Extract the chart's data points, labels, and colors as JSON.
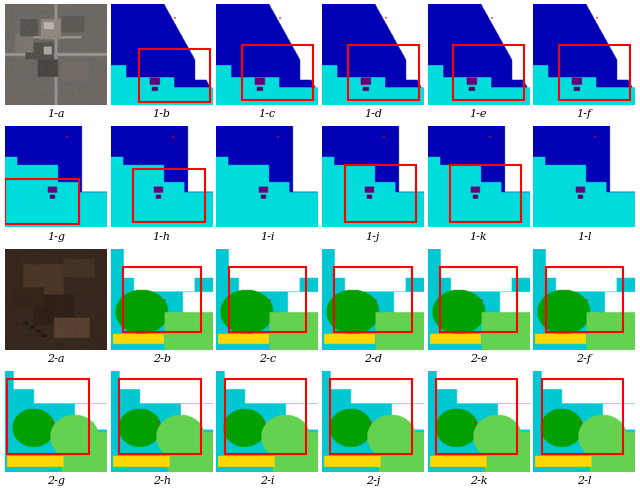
{
  "figure_size": [
    6.4,
    5.01
  ],
  "dpi": 100,
  "background_color": "#ffffff",
  "rows": 4,
  "cols": 6,
  "labels_row1": [
    "1-a",
    "1-b",
    "1-c",
    "1-d",
    "1-e",
    "1-f"
  ],
  "labels_row2": [
    "1-g",
    "1-h",
    "1-i",
    "1-j",
    "1-k",
    "1-l"
  ],
  "labels_row3": [
    "2-a",
    "2-b",
    "2-c",
    "2-d",
    "2-e",
    "2-f"
  ],
  "labels_row4": [
    "2-g",
    "2-h",
    "2-i",
    "2-j",
    "2-k",
    "2-l"
  ],
  "col1_blue": [
    0,
    0,
    180
  ],
  "col_cyan": [
    0,
    220,
    220
  ],
  "col_white": [
    255,
    255,
    255
  ],
  "col_red": [
    255,
    0,
    0
  ],
  "col_dark_green": [
    0,
    160,
    0
  ],
  "col_light_green": [
    100,
    210,
    80
  ],
  "col_yellow": [
    255,
    215,
    0
  ],
  "col_cyan2": [
    0,
    200,
    210
  ],
  "label_fontsize": 8,
  "red_lw": 1.5
}
